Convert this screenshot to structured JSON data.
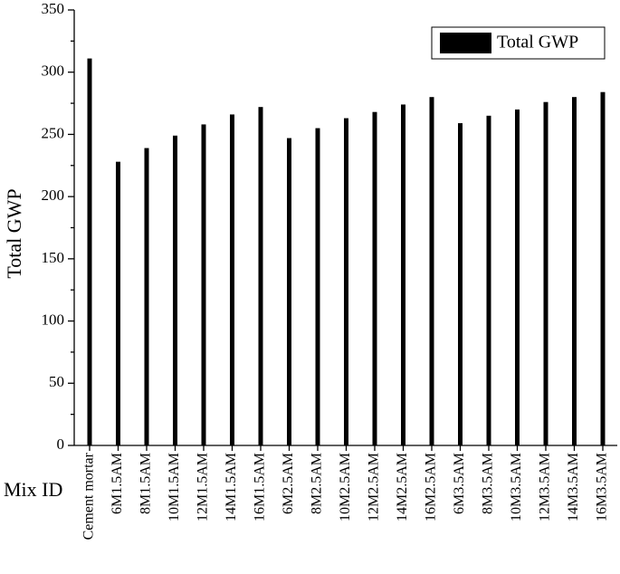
{
  "chart_data": {
    "type": "bar",
    "xlabel": "Mix ID",
    "ylabel": "Total GWP",
    "categories": [
      "Cement mortar",
      "6M1.5AM",
      "8M1.5AM",
      "10M1.5AM",
      "12M1.5AM",
      "14M1.5AM",
      "16M1.5AM",
      "6M2.5AM",
      "8M2.5AM",
      "10M2.5AM",
      "12M2.5AM",
      "14M2.5AM",
      "16M2.5AM",
      "6M3.5AM",
      "8M3.5AM",
      "10M3.5AM",
      "12M3.5AM",
      "14M3.5AM",
      "16M3.5AM"
    ],
    "series": [
      {
        "name": "Total GWP",
        "color": "#000000",
        "values": [
          311,
          228,
          239,
          249,
          258,
          266,
          272,
          247,
          255,
          263,
          268,
          274,
          280,
          259,
          265,
          270,
          276,
          280,
          284
        ]
      }
    ],
    "ylim": [
      0,
      350
    ],
    "yticks": [
      0,
      50,
      100,
      150,
      200,
      250,
      300,
      350
    ],
    "legend": "upper right",
    "grid": false
  }
}
